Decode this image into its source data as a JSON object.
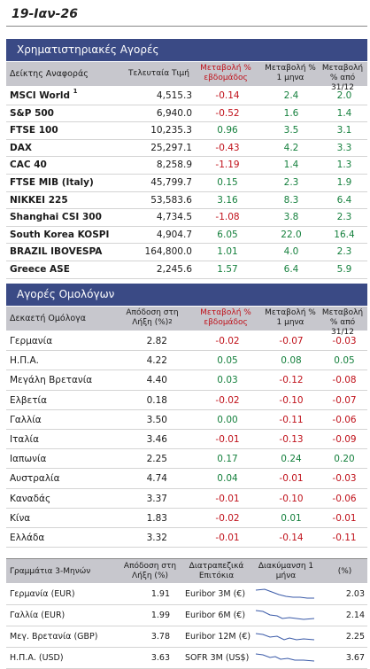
{
  "date": "19-Ιαν-26",
  "equities": {
    "title": "Χρηματιστηριακές Αγορές",
    "headers": {
      "index": "Δείκτης Αναφοράς",
      "last": "Τελευταία Τιμή",
      "weekly": "Μεταβολή % εβδομάδος",
      "monthly": "Μεταβολή % 1 μηνα",
      "ytd": "Μεταβολή % από 31/12"
    },
    "rows": [
      {
        "name": "MSCI World",
        "sup": "1",
        "value": "4,515.3",
        "w": "-0.14",
        "m": "2.4",
        "y": "2.0"
      },
      {
        "name": "S&P 500",
        "sup": "",
        "value": "6,940.0",
        "w": "-0.52",
        "m": "1.6",
        "y": "1.4"
      },
      {
        "name": "FTSE 100",
        "sup": "",
        "value": "10,235.3",
        "w": "0.96",
        "m": "3.5",
        "y": "3.1"
      },
      {
        "name": "DAX",
        "sup": "",
        "value": "25,297.1",
        "w": "-0.43",
        "m": "4.2",
        "y": "3.3"
      },
      {
        "name": "CAC 40",
        "sup": "",
        "value": "8,258.9",
        "w": "-1.19",
        "m": "1.4",
        "y": "1.3"
      },
      {
        "name": "FTSE MIB (Italy)",
        "sup": "",
        "value": "45,799.7",
        "w": "0.15",
        "m": "2.3",
        "y": "1.9"
      },
      {
        "name": "NIKKEI 225",
        "sup": "",
        "value": "53,583.6",
        "w": "3.16",
        "m": "8.3",
        "y": "6.4"
      },
      {
        "name": "Shanghai CSI 300",
        "sup": "",
        "value": "4,734.5",
        "w": "-1.08",
        "m": "3.8",
        "y": "2.3"
      },
      {
        "name": "South Korea KOSPI",
        "sup": "",
        "value": "4,904.7",
        "w": "6.05",
        "m": "22.0",
        "y": "16.4"
      },
      {
        "name": "BRAZIL IBOVESPA",
        "sup": "",
        "value": "164,800.0",
        "w": "1.01",
        "m": "4.0",
        "y": "2.3"
      },
      {
        "name": "Greece ASE",
        "sup": "",
        "value": "2,245.6",
        "w": "1.57",
        "m": "6.4",
        "y": "5.9"
      }
    ]
  },
  "bonds": {
    "title": "Αγορές Ομολόγων",
    "headers": {
      "name": "Δεκαετή Ομόλογα",
      "yield": "Απόδοση στη Λήξη (%)",
      "yield_sup": "2",
      "weekly": "Μεταβολή % εβδομάδος",
      "monthly": "Μεταβολή % 1 μηνα",
      "ytd": "Μεταβολή % από 31/12"
    },
    "rows": [
      {
        "name": "Γερμανία",
        "value": "2.82",
        "w": "-0.02",
        "m": "-0.07",
        "y": "-0.03"
      },
      {
        "name": "Η.Π.Α.",
        "value": "4.22",
        "w": "0.05",
        "m": "0.08",
        "y": "0.05"
      },
      {
        "name": "Μεγάλη Βρετανία",
        "value": "4.40",
        "w": "0.03",
        "m": "-0.12",
        "y": "-0.08"
      },
      {
        "name": "Ελβετία",
        "value": "0.18",
        "w": "-0.02",
        "m": "-0.10",
        "y": "-0.07"
      },
      {
        "name": "Γαλλία",
        "value": "3.50",
        "w": "0.00",
        "m": "-0.11",
        "y": "-0.06"
      },
      {
        "name": "Ιταλία",
        "value": "3.46",
        "w": "-0.01",
        "m": "-0.13",
        "y": "-0.09"
      },
      {
        "name": "Ιαπωνία",
        "value": "2.25",
        "w": "0.17",
        "m": "0.24",
        "y": "0.20"
      },
      {
        "name": "Αυστραλία",
        "value": "4.74",
        "w": "0.04",
        "m": "-0.01",
        "y": "-0.03"
      },
      {
        "name": "Καναδάς",
        "value": "3.37",
        "w": "-0.01",
        "m": "-0.10",
        "y": "-0.06"
      },
      {
        "name": "Κίνα",
        "value": "1.83",
        "w": "-0.02",
        "m": "0.01",
        "y": "-0.01"
      },
      {
        "name": "Ελλάδα",
        "value": "3.32",
        "w": "-0.01",
        "m": "-0.14",
        "y": "-0.11"
      }
    ]
  },
  "bills": {
    "headers": {
      "name": "Γραμμάτια 3-Μηνών",
      "yield": "Απόδοση στη Λήξη (%)",
      "interbank": "Διατραπεζικά Επιτόκια",
      "fluct": "Διακύμανση 1 μήνα",
      "pct": "(%)"
    },
    "rows": [
      {
        "name": "Γερμανία (EUR)",
        "value": "1.91",
        "index": "Euribor 3M (€)",
        "rate": "2.03"
      },
      {
        "name": "Γαλλία (EUR)",
        "value": "1.99",
        "index": "Euribor 6M (€)",
        "rate": "2.14"
      },
      {
        "name": "Μεγ. Βρετανία (GBP)",
        "value": "3.78",
        "index": "Euribor 12M (€)",
        "rate": "2.25"
      },
      {
        "name": "Η.Π.Α. (USD)",
        "value": "3.63",
        "index": "SOFR 3M (US$)",
        "rate": "3.67"
      }
    ]
  }
}
